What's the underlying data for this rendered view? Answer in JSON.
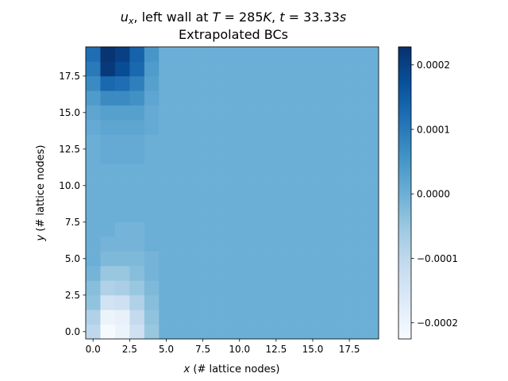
{
  "chart_data": {
    "type": "heatmap",
    "title": {
      "line1_parts": [
        {
          "text": "u",
          "style": "italic"
        },
        {
          "text": "x",
          "style": "italic-sub"
        },
        {
          "text": ", left wall at ",
          "style": "normal"
        },
        {
          "text": "T",
          "style": "italic"
        },
        {
          "text": " = 285",
          "style": "normal"
        },
        {
          "text": "K",
          "style": "italic"
        },
        {
          "text": ", ",
          "style": "normal"
        },
        {
          "text": "t",
          "style": "italic"
        },
        {
          "text": " = 33.33",
          "style": "normal"
        },
        {
          "text": "s",
          "style": "italic"
        }
      ],
      "line2": "Extrapolated BCs"
    },
    "xlabel_var": "x",
    "xlabel_rest": " (# lattice nodes)",
    "ylabel_var": "y",
    "ylabel_rest": " (# lattice nodes)",
    "xlim": [
      -0.5,
      19.5
    ],
    "ylim": [
      -0.5,
      19.5
    ],
    "xticks": [
      0.0,
      2.5,
      5.0,
      7.5,
      10.0,
      12.5,
      15.0,
      17.5
    ],
    "yticks": [
      0.0,
      2.5,
      5.0,
      7.5,
      10.0,
      12.5,
      15.0,
      17.5
    ],
    "tick_format": 1,
    "colormap": "Blues",
    "colorbar": {
      "vmin": -0.000225,
      "vmax": 0.000228,
      "ticks": [
        0.0002,
        0.0001,
        0.0,
        -0.0001,
        -0.0002
      ],
      "tick_labels": [
        "0.0002",
        "0.0001",
        "0.0000",
        "−0.0001",
        "−0.0002"
      ]
    },
    "background_value": 0.0,
    "cells_note": "values in m/s at grid nodes; rows listed from y=0 upward, columns x=0..4; all other cells equal background_value",
    "columns_x": [
      0,
      1,
      2,
      3,
      4
    ],
    "rows": [
      {
        "y": 0,
        "values": [
          -0.0001,
          -0.00022,
          -0.0002,
          -0.00013,
          -5e-05
        ]
      },
      {
        "y": 1,
        "values": [
          -8e-05,
          -0.0002,
          -0.00019,
          -0.00011,
          -4e-05
        ]
      },
      {
        "y": 2,
        "values": [
          -4e-05,
          -0.00014,
          -0.00013,
          -8e-05,
          -3e-05
        ]
      },
      {
        "y": 3,
        "values": [
          -3e-05,
          -8e-05,
          -7e-05,
          -5e-05,
          -2e-05
        ]
      },
      {
        "y": 4,
        "values": [
          -1e-05,
          -5e-05,
          -5e-05,
          -3e-05,
          -1e-05
        ]
      },
      {
        "y": 5,
        "values": [
          0.0,
          -2e-05,
          -2e-05,
          -2e-05,
          -1e-05
        ]
      },
      {
        "y": 6,
        "values": [
          0.0,
          -1e-05,
          -1e-05,
          -1e-05,
          0.0
        ]
      },
      {
        "y": 7,
        "values": [
          0.0,
          0.0,
          -1e-05,
          -1e-05,
          0.0
        ]
      },
      {
        "y": 8,
        "values": [
          0.0,
          0.0,
          0.0,
          0.0,
          0.0
        ]
      },
      {
        "y": 9,
        "values": [
          0.0,
          0.0,
          0.0,
          0.0,
          0.0
        ]
      },
      {
        "y": 10,
        "values": [
          0.0,
          0.0,
          0.0,
          0.0,
          0.0
        ]
      },
      {
        "y": 11,
        "values": [
          0.0,
          0.0,
          0.0,
          0.0,
          0.0
        ]
      },
      {
        "y": 12,
        "values": [
          0.0,
          1e-05,
          1e-05,
          1e-05,
          0.0
        ]
      },
      {
        "y": 13,
        "values": [
          0.0,
          1e-05,
          1e-05,
          1e-05,
          0.0
        ]
      },
      {
        "y": 14,
        "values": [
          1e-05,
          2e-05,
          2e-05,
          2e-05,
          1e-05
        ]
      },
      {
        "y": 15,
        "values": [
          2e-05,
          3e-05,
          3e-05,
          3e-05,
          1e-05
        ]
      },
      {
        "y": 16,
        "values": [
          4e-05,
          7e-05,
          7e-05,
          6e-05,
          2e-05
        ]
      },
      {
        "y": 17,
        "values": [
          7e-05,
          0.00013,
          0.00012,
          9e-05,
          3e-05
        ]
      },
      {
        "y": 18,
        "values": [
          0.0001,
          0.00021,
          0.00018,
          0.00013,
          4e-05
        ]
      },
      {
        "y": 19,
        "values": [
          0.00012,
          0.00022,
          0.0002,
          0.00014,
          5e-05
        ]
      }
    ]
  }
}
